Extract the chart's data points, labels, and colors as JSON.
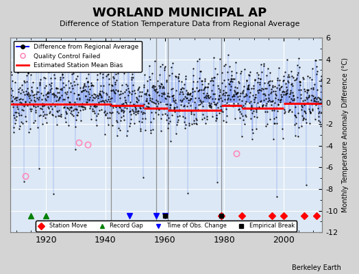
{
  "title": "WORLAND MUNICIPAL AP",
  "subtitle": "Difference of Station Temperature Data from Regional Average",
  "ylabel": "Monthly Temperature Anomaly Difference (°C)",
  "xlim": [
    1908,
    2013
  ],
  "ylim": [
    -12,
    6
  ],
  "yticks": [
    -12,
    -10,
    -8,
    -6,
    -4,
    -2,
    0,
    2,
    4,
    6
  ],
  "xticks": [
    1920,
    1940,
    1960,
    1980,
    2000
  ],
  "background_color": "#d4d4d4",
  "plot_bg_color": "#dce8f5",
  "bias_segments": [
    {
      "x_start": 1908,
      "x_end": 1942,
      "bias": -0.15
    },
    {
      "x_start": 1942,
      "x_end": 1953,
      "bias": -0.25
    },
    {
      "x_start": 1953,
      "x_end": 1961,
      "bias": -0.5
    },
    {
      "x_start": 1961,
      "x_end": 1979,
      "bias": -0.7
    },
    {
      "x_start": 1979,
      "x_end": 1986,
      "bias": -0.3
    },
    {
      "x_start": 1986,
      "x_end": 2000,
      "bias": -0.55
    },
    {
      "x_start": 2000,
      "x_end": 2013,
      "bias": -0.1
    }
  ],
  "station_moves": [
    1979,
    1986,
    1996,
    2000,
    2007,
    2011
  ],
  "record_gaps": [
    1915,
    1920
  ],
  "time_of_obs_changes": [
    1948,
    1957,
    1960
  ],
  "empirical_breaks": [
    1960,
    1979
  ],
  "qc_failed_years": [
    1913,
    1931,
    1934,
    1984
  ],
  "qc_failed_values": [
    -6.8,
    -3.7,
    -3.9,
    -4.7
  ],
  "vertical_lines": [
    1942,
    1957,
    1961,
    1979
  ],
  "seed": 42
}
